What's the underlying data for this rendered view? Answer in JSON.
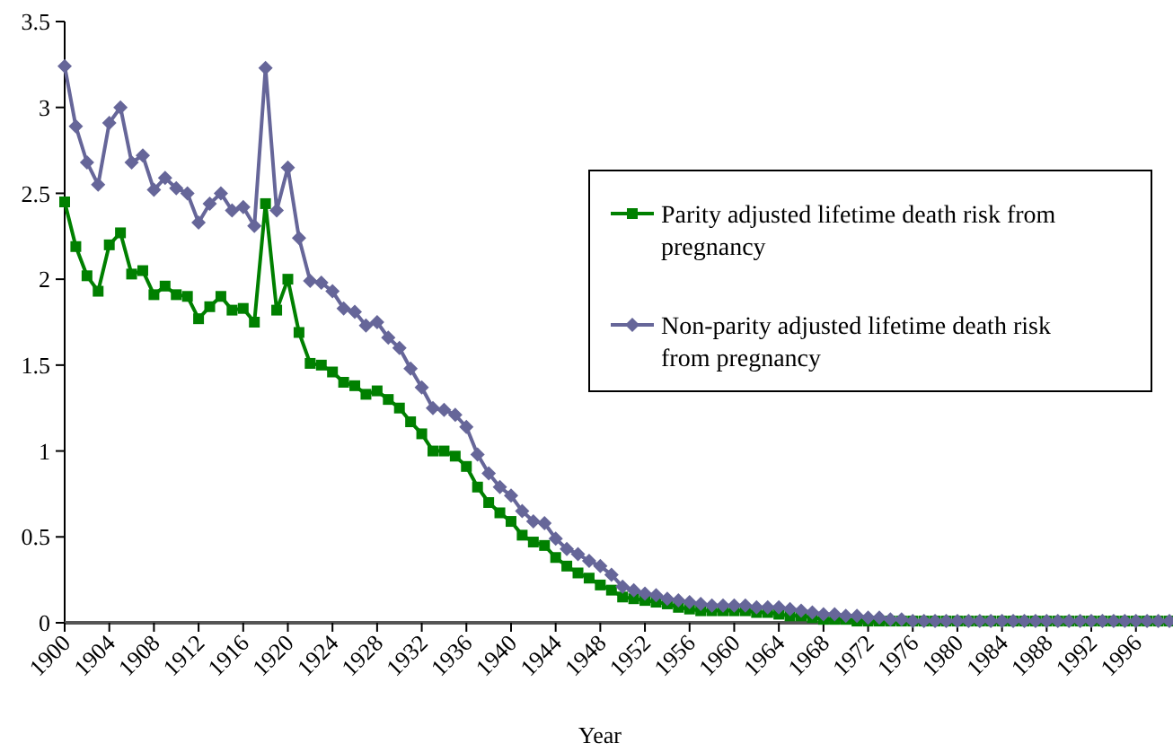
{
  "chart_data": {
    "type": "line",
    "xlabel": "Year",
    "categories": [
      "1900",
      null,
      null,
      null,
      "1904",
      null,
      null,
      null,
      "1908",
      null,
      null,
      null,
      "1912",
      null,
      null,
      null,
      "1916",
      null,
      null,
      null,
      "1920",
      null,
      null,
      null,
      "1924",
      null,
      null,
      null,
      "1928",
      null,
      null,
      null,
      "1932",
      null,
      null,
      null,
      "1936",
      null,
      null,
      null,
      "1940",
      null,
      null,
      null,
      "1944",
      null,
      null,
      null,
      "1948",
      null,
      null,
      null,
      "1952",
      null,
      null,
      null,
      "1956",
      null,
      null,
      null,
      "1960",
      null,
      null,
      null,
      "1964",
      null,
      null,
      null,
      "1968",
      null,
      null,
      null,
      "1972",
      null,
      null,
      null,
      "1976",
      null,
      null,
      null,
      "1980",
      null,
      null,
      null,
      "1984",
      null,
      null,
      null,
      "1988",
      null,
      null,
      null,
      "1992",
      null,
      null,
      null,
      "1996",
      null,
      null,
      null
    ],
    "series": [
      {
        "name": "Parity adjusted lifetime death risk from pregnancy",
        "color": "#008000",
        "marker": "square",
        "values": [
          2.45,
          2.19,
          2.02,
          1.93,
          2.2,
          2.27,
          2.03,
          2.05,
          1.91,
          1.96,
          1.91,
          1.9,
          1.77,
          1.84,
          1.9,
          1.82,
          1.83,
          1.75,
          2.44,
          1.82,
          2.0,
          1.69,
          1.51,
          1.5,
          1.46,
          1.4,
          1.38,
          1.33,
          1.35,
          1.3,
          1.25,
          1.17,
          1.1,
          1.0,
          1.0,
          0.97,
          0.91,
          0.79,
          0.7,
          0.64,
          0.59,
          0.51,
          0.47,
          0.45,
          0.38,
          0.33,
          0.29,
          0.26,
          0.22,
          0.19,
          0.15,
          0.14,
          0.13,
          0.12,
          0.11,
          0.09,
          0.08,
          0.07,
          0.07,
          0.07,
          0.07,
          0.07,
          0.06,
          0.06,
          0.05,
          0.04,
          0.04,
          0.03,
          0.02,
          0.02,
          0.02,
          0.01,
          0.01,
          0.01,
          0.01,
          0.01,
          0.01,
          0.01,
          0.01,
          0.01,
          0.01,
          0.01,
          0.01,
          0.01,
          0.01,
          0.01,
          0.01,
          0.01,
          0.01,
          0.01,
          0.01,
          0.01,
          0.01,
          0.01,
          0.01,
          0.01,
          0.01,
          0.01,
          0.01,
          0.01
        ]
      },
      {
        "name": "Non-parity adjusted lifetime death risk from pregnancy",
        "color": "#666699",
        "marker": "diamond",
        "values": [
          3.24,
          2.89,
          2.68,
          2.55,
          2.91,
          3.0,
          2.68,
          2.72,
          2.52,
          2.59,
          2.53,
          2.5,
          2.33,
          2.44,
          2.5,
          2.4,
          2.42,
          2.31,
          3.23,
          2.4,
          2.65,
          2.24,
          1.99,
          1.98,
          1.93,
          1.83,
          1.81,
          1.73,
          1.75,
          1.66,
          1.6,
          1.48,
          1.37,
          1.25,
          1.24,
          1.21,
          1.14,
          0.98,
          0.87,
          0.79,
          0.74,
          0.65,
          0.59,
          0.58,
          0.49,
          0.43,
          0.4,
          0.36,
          0.33,
          0.28,
          0.21,
          0.19,
          0.17,
          0.16,
          0.14,
          0.13,
          0.12,
          0.11,
          0.1,
          0.1,
          0.1,
          0.1,
          0.09,
          0.09,
          0.09,
          0.08,
          0.07,
          0.06,
          0.05,
          0.05,
          0.04,
          0.04,
          0.03,
          0.03,
          0.02,
          0.02,
          0.01,
          0.01,
          0.01,
          0.01,
          0.01,
          0.01,
          0.01,
          0.01,
          0.01,
          0.01,
          0.01,
          0.01,
          0.01,
          0.01,
          0.01,
          0.01,
          0.01,
          0.01,
          0.01,
          0.01,
          0.01,
          0.01,
          0.01,
          0.01
        ]
      }
    ],
    "ylim": [
      0,
      3.5
    ],
    "yticks": [
      0,
      0.5,
      1,
      1.5,
      2,
      2.5,
      3,
      3.5
    ],
    "grid": false,
    "legend": "right",
    "line_style": "solid"
  }
}
